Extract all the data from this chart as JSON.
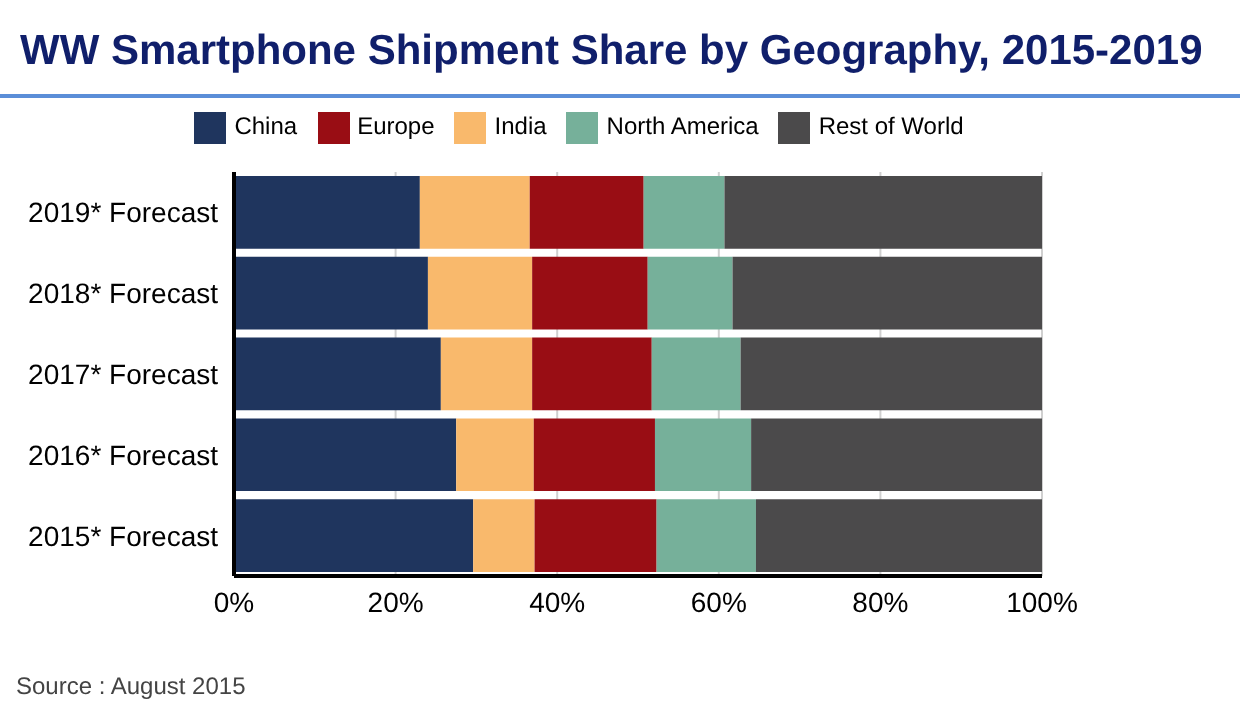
{
  "chart_data": {
    "type": "bar",
    "orientation": "horizontal",
    "stacked": true,
    "title": "WW Smartphone Shipment Share by Geography, 2015-2019",
    "categories": [
      "2019* Forecast",
      "2018* Forecast",
      "2017* Forecast",
      "2016* Forecast",
      "2015* Forecast"
    ],
    "series": [
      {
        "name": "China",
        "color": "#1f355e",
        "values": [
          23.0,
          24.0,
          25.6,
          27.5,
          29.6
        ]
      },
      {
        "name": "India",
        "color": "#f9b96c",
        "values": [
          13.6,
          12.9,
          11.3,
          9.6,
          7.6
        ]
      },
      {
        "name": "Europe",
        "color": "#990d14",
        "values": [
          14.1,
          14.3,
          14.8,
          15.0,
          15.1
        ]
      },
      {
        "name": "North America",
        "color": "#76b09a",
        "values": [
          10.0,
          10.5,
          11.0,
          11.9,
          12.3
        ]
      },
      {
        "name": "Rest of World",
        "color": "#4b4a4b",
        "values": [
          39.3,
          38.3,
          37.3,
          36.0,
          35.4
        ]
      }
    ],
    "xlim": [
      0,
      100
    ],
    "xticks": [
      {
        "value": 0,
        "label": "0%"
      },
      {
        "value": 20,
        "label": "20%"
      },
      {
        "value": 40,
        "label": "40%"
      },
      {
        "value": 60,
        "label": "60%"
      },
      {
        "value": 80,
        "label": "80%"
      },
      {
        "value": 100,
        "label": "100%"
      }
    ],
    "grid": "x",
    "legend": "top",
    "annotations": [
      "Source : August 2015"
    ]
  }
}
